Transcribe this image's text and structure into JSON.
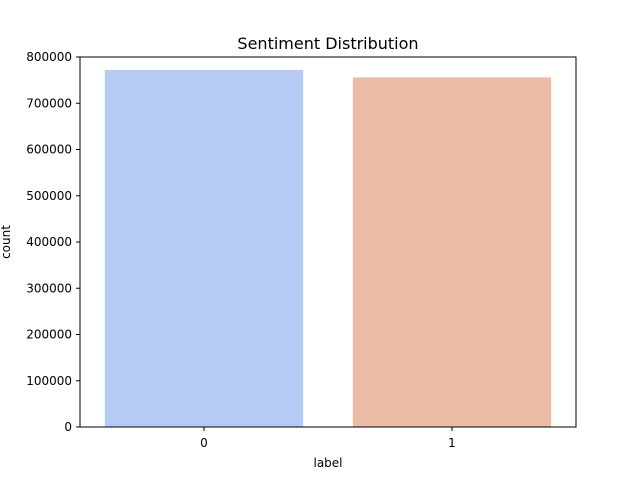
{
  "chart_data": {
    "type": "bar",
    "title": "Sentiment Distribution",
    "xlabel": "label",
    "ylabel": "count",
    "categories": [
      "0",
      "1"
    ],
    "values": [
      772000,
      756000
    ],
    "colors": [
      "#b5cbf3",
      "#ebbda7"
    ],
    "ylim": [
      0,
      800000
    ],
    "yticks": [
      0,
      100000,
      200000,
      300000,
      400000,
      500000,
      600000,
      700000,
      800000
    ],
    "ytick_labels": [
      "0",
      "100000",
      "200000",
      "300000",
      "400000",
      "500000",
      "600000",
      "700000",
      "800000"
    ],
    "grid": false,
    "legend": false
  }
}
